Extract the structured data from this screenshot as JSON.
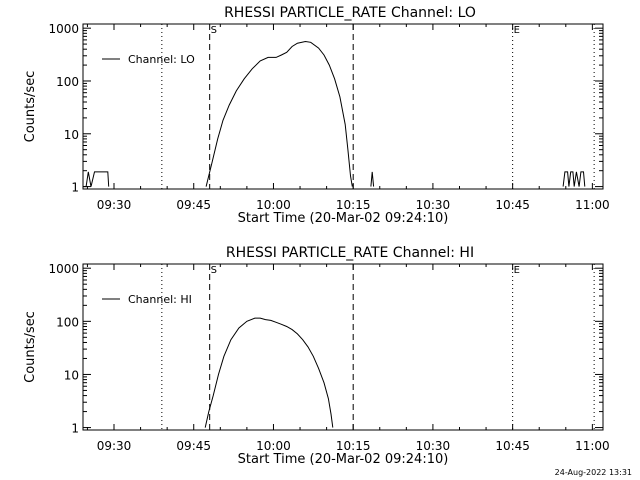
{
  "footer": {
    "timestamp": "24-Aug-2022 13:31"
  },
  "chart_data": [
    {
      "type": "line",
      "title": "RHESSI PARTICLE_RATE Channel: LO",
      "xlabel": "Start Time (20-Mar-02 09:24:10)",
      "ylabel": "Counts/sec",
      "yscale": "log",
      "xlim": [
        "09:24:10",
        "11:02:00"
      ],
      "ylim": [
        0.9,
        1200
      ],
      "xticks": [
        "09:30",
        "09:45",
        "10:00",
        "10:15",
        "10:30",
        "10:45",
        "11:00"
      ],
      "yticks": [
        "1",
        "10",
        "100",
        "1000"
      ],
      "legend": {
        "label": "Channel: LO",
        "position": "top-left"
      },
      "markers": [
        {
          "x": "09:39:00",
          "style": "dotted",
          "label": ""
        },
        {
          "x": "09:48:00",
          "style": "dashed",
          "label": "S"
        },
        {
          "x": "10:15:00",
          "style": "dashed",
          "label": ""
        },
        {
          "x": "10:45:00",
          "style": "dotted",
          "label": "E"
        },
        {
          "x": "11:00:20",
          "style": "dotted",
          "label": ""
        }
      ],
      "series": [
        {
          "name": "Channel: LO",
          "segments": [
            [
              [
                "09:24:10",
                1
              ],
              [
                "09:24:45",
                1
              ],
              [
                "09:25:10",
                1.9
              ],
              [
                "09:25:40",
                1
              ],
              [
                "09:26:20",
                1.9
              ],
              [
                "09:28:50",
                1.9
              ],
              [
                "09:29:00",
                1
              ]
            ],
            [
              [
                "09:47:20",
                1
              ],
              [
                "09:48:30",
                3
              ],
              [
                "09:49:30",
                8
              ],
              [
                "09:50:30",
                18
              ],
              [
                "09:51:40",
                35
              ],
              [
                "09:53:00",
                65
              ],
              [
                "09:54:30",
                110
              ],
              [
                "09:56:00",
                170
              ],
              [
                "09:57:30",
                240
              ],
              [
                "09:59:00",
                280
              ],
              [
                "10:00:30",
                280
              ],
              [
                "10:01:30",
                310
              ],
              [
                "10:02:30",
                350
              ],
              [
                "10:03:30",
                450
              ],
              [
                "10:04:30",
                520
              ],
              [
                "10:06:00",
                560
              ],
              [
                "10:07:00",
                540
              ],
              [
                "10:08:30",
                420
              ],
              [
                "10:09:30",
                310
              ],
              [
                "10:10:30",
                200
              ],
              [
                "10:11:30",
                110
              ],
              [
                "10:12:30",
                50
              ],
              [
                "10:13:30",
                15
              ],
              [
                "10:14:00",
                5
              ],
              [
                "10:14:30",
                1.6
              ],
              [
                "10:14:50",
                1
              ]
            ],
            [
              [
                "10:18:20",
                1
              ],
              [
                "10:18:35",
                1.9
              ],
              [
                "10:18:50",
                1
              ]
            ],
            [
              [
                "10:54:30",
                1
              ],
              [
                "10:54:50",
                1.9
              ],
              [
                "10:55:20",
                1.9
              ],
              [
                "10:55:35",
                1
              ],
              [
                "10:55:55",
                1.9
              ],
              [
                "10:56:20",
                1.9
              ],
              [
                "10:56:35",
                1
              ],
              [
                "10:57:00",
                1.9
              ],
              [
                "10:57:30",
                1
              ],
              [
                "10:57:50",
                1.9
              ],
              [
                "10:58:20",
                1.9
              ],
              [
                "10:58:35",
                1
              ]
            ]
          ]
        }
      ]
    },
    {
      "type": "line",
      "title": "RHESSI PARTICLE_RATE Channel: HI",
      "xlabel": "Start Time (20-Mar-02 09:24:10)",
      "ylabel": "Counts/sec",
      "yscale": "log",
      "xlim": [
        "09:24:10",
        "11:02:00"
      ],
      "ylim": [
        0.9,
        1200
      ],
      "xticks": [
        "09:30",
        "09:45",
        "10:00",
        "10:15",
        "10:30",
        "10:45",
        "11:00"
      ],
      "yticks": [
        "1",
        "10",
        "100",
        "1000"
      ],
      "legend": {
        "label": "Channel: HI",
        "position": "top-left"
      },
      "markers": [
        {
          "x": "09:39:00",
          "style": "dotted",
          "label": ""
        },
        {
          "x": "09:48:00",
          "style": "dashed",
          "label": "S"
        },
        {
          "x": "10:15:00",
          "style": "dashed",
          "label": ""
        },
        {
          "x": "10:45:00",
          "style": "dotted",
          "label": "E"
        },
        {
          "x": "11:00:20",
          "style": "dotted",
          "label": ""
        }
      ],
      "series": [
        {
          "name": "Channel: HI",
          "segments": [
            [
              [
                "09:47:10",
                1
              ],
              [
                "09:47:50",
                2
              ],
              [
                "09:48:40",
                4
              ],
              [
                "09:49:40",
                10
              ],
              [
                "09:50:40",
                22
              ],
              [
                "09:52:00",
                45
              ],
              [
                "09:53:30",
                75
              ],
              [
                "09:55:00",
                100
              ],
              [
                "09:56:30",
                115
              ],
              [
                "09:57:30",
                115
              ],
              [
                "09:58:30",
                108
              ],
              [
                "09:59:30",
                104
              ],
              [
                "10:00:30",
                96
              ],
              [
                "10:01:30",
                88
              ],
              [
                "10:02:30",
                80
              ],
              [
                "10:03:30",
                70
              ],
              [
                "10:04:30",
                58
              ],
              [
                "10:05:30",
                45
              ],
              [
                "10:06:30",
                33
              ],
              [
                "10:07:30",
                22
              ],
              [
                "10:08:30",
                13
              ],
              [
                "10:09:30",
                7
              ],
              [
                "10:10:20",
                3.5
              ],
              [
                "10:10:50",
                1.8
              ],
              [
                "10:11:10",
                1
              ]
            ]
          ]
        }
      ]
    }
  ]
}
